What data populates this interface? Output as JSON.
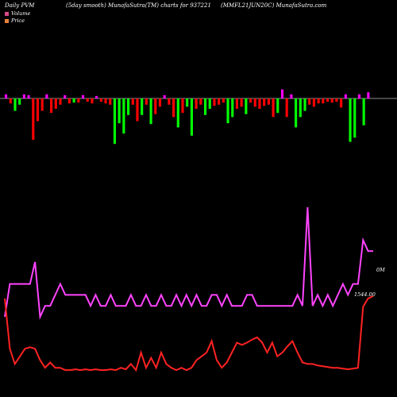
{
  "header": {
    "left": "Daily PVM",
    "middle": "(5day smooth) MunafaSutra(TM) charts for 937221",
    "right": "(MMFL21JUN20C) MunafaSutra.com"
  },
  "legend": [
    {
      "label": "Volume",
      "color": "#d64b8a"
    },
    {
      "label": "Price",
      "color": "#e8823a"
    }
  ],
  "chart_data": {
    "type": "bar",
    "series": [
      {
        "name": "Volume",
        "bars": [
          {
            "v": 0.1,
            "c": "#ff00ff"
          },
          {
            "v": -0.12,
            "c": "#ff0000"
          },
          {
            "v": -0.3,
            "c": "#00ff00"
          },
          {
            "v": -0.15,
            "c": "#00ff00"
          },
          {
            "v": 0.1,
            "c": "#ff00ff"
          },
          {
            "v": 0.08,
            "c": "#ff00ff"
          },
          {
            "v": -1.0,
            "c": "#ff0000"
          },
          {
            "v": -0.55,
            "c": "#ff0000"
          },
          {
            "v": -0.3,
            "c": "#ff0000"
          },
          {
            "v": 0.1,
            "c": "#ff00ff"
          },
          {
            "v": -0.35,
            "c": "#ff0000"
          },
          {
            "v": -0.25,
            "c": "#ff0000"
          },
          {
            "v": -0.15,
            "c": "#ff0000"
          },
          {
            "v": 0.08,
            "c": "#ff00ff"
          },
          {
            "v": -0.12,
            "c": "#ff0000"
          },
          {
            "v": -0.1,
            "c": "#00ff00"
          },
          {
            "v": -0.1,
            "c": "#ff0000"
          },
          {
            "v": 0.08,
            "c": "#ff00ff"
          },
          {
            "v": -0.08,
            "c": "#ff0000"
          },
          {
            "v": -0.12,
            "c": "#ff0000"
          },
          {
            "v": 0.06,
            "c": "#ff00ff"
          },
          {
            "v": -0.08,
            "c": "#ff0000"
          },
          {
            "v": -0.12,
            "c": "#ff0000"
          },
          {
            "v": -0.15,
            "c": "#ff0000"
          },
          {
            "v": -1.1,
            "c": "#00ff00"
          },
          {
            "v": -0.6,
            "c": "#00ff00"
          },
          {
            "v": -0.85,
            "c": "#00ff00"
          },
          {
            "v": -0.4,
            "c": "#00ff00"
          },
          {
            "v": -0.15,
            "c": "#ff0000"
          },
          {
            "v": -0.55,
            "c": "#ff0000"
          },
          {
            "v": -0.4,
            "c": "#00ff00"
          },
          {
            "v": -0.15,
            "c": "#ff0000"
          },
          {
            "v": -0.62,
            "c": "#00ff00"
          },
          {
            "v": -0.38,
            "c": "#ff0000"
          },
          {
            "v": -0.2,
            "c": "#ff0000"
          },
          {
            "v": 0.08,
            "c": "#ff00ff"
          },
          {
            "v": -0.15,
            "c": "#ff0000"
          },
          {
            "v": -0.45,
            "c": "#ff0000"
          },
          {
            "v": -0.7,
            "c": "#00ff00"
          },
          {
            "v": -0.35,
            "c": "#ff0000"
          },
          {
            "v": -0.2,
            "c": "#00ff00"
          },
          {
            "v": -0.9,
            "c": "#00ff00"
          },
          {
            "v": -0.25,
            "c": "#ff0000"
          },
          {
            "v": -0.15,
            "c": "#ff0000"
          },
          {
            "v": -0.4,
            "c": "#00ff00"
          },
          {
            "v": -0.25,
            "c": "#00ff00"
          },
          {
            "v": -0.18,
            "c": "#ff0000"
          },
          {
            "v": -0.15,
            "c": "#ff0000"
          },
          {
            "v": -0.1,
            "c": "#ff0000"
          },
          {
            "v": -0.6,
            "c": "#00ff00"
          },
          {
            "v": -0.45,
            "c": "#00ff00"
          },
          {
            "v": -0.25,
            "c": "#ff0000"
          },
          {
            "v": -0.2,
            "c": "#ff0000"
          },
          {
            "v": -0.38,
            "c": "#00ff00"
          },
          {
            "v": -0.1,
            "c": "#ff0000"
          },
          {
            "v": -0.2,
            "c": "#ff0000"
          },
          {
            "v": -0.25,
            "c": "#ff0000"
          },
          {
            "v": -0.18,
            "c": "#ff0000"
          },
          {
            "v": -0.15,
            "c": "#ff0000"
          },
          {
            "v": -0.45,
            "c": "#ff0000"
          },
          {
            "v": -0.35,
            "c": "#00ff00"
          },
          {
            "v": 0.22,
            "c": "#ff00ff"
          },
          {
            "v": -0.45,
            "c": "#ff0000"
          },
          {
            "v": 0.1,
            "c": "#ff00ff"
          },
          {
            "v": -0.7,
            "c": "#00ff00"
          },
          {
            "v": -0.45,
            "c": "#00ff00"
          },
          {
            "v": -0.3,
            "c": "#00ff00"
          },
          {
            "v": -0.15,
            "c": "#ff0000"
          },
          {
            "v": -0.2,
            "c": "#ff0000"
          },
          {
            "v": -0.12,
            "c": "#ff0000"
          },
          {
            "v": -0.12,
            "c": "#ff0000"
          },
          {
            "v": -0.08,
            "c": "#ff0000"
          },
          {
            "v": -0.1,
            "c": "#ff0000"
          },
          {
            "v": -0.08,
            "c": "#ff0000"
          },
          {
            "v": -0.22,
            "c": "#ff0000"
          },
          {
            "v": 0.1,
            "c": "#ff00ff"
          },
          {
            "v": -1.05,
            "c": "#00ff00"
          },
          {
            "v": -0.95,
            "c": "#00ff00"
          },
          {
            "v": 0.1,
            "c": "#ff00ff"
          },
          {
            "v": -0.65,
            "c": "#00ff00"
          },
          {
            "v": 0.15,
            "c": "#ff00ff"
          }
        ]
      }
    ],
    "price": [
      0.95,
      0.98,
      0.98,
      0.98,
      0.98,
      0.98,
      1.0,
      0.95,
      0.96,
      0.96,
      0.97,
      0.98,
      0.97,
      0.97,
      0.97,
      0.97,
      0.97,
      0.96,
      0.97,
      0.96,
      0.96,
      0.97,
      0.96,
      0.96,
      0.96,
      0.97,
      0.96,
      0.96,
      0.97,
      0.96,
      0.96,
      0.97,
      0.96,
      0.96,
      0.97,
      0.96,
      0.97,
      0.96,
      0.97,
      0.96,
      0.96,
      0.97,
      0.97,
      0.96,
      0.97,
      0.96,
      0.96,
      0.96,
      0.97,
      0.97,
      0.96,
      0.96,
      0.96,
      0.96,
      0.96,
      0.96,
      0.96,
      0.96,
      0.97,
      0.96,
      1.05,
      0.96,
      0.97,
      0.96,
      0.97,
      0.96,
      0.97,
      0.98,
      0.97,
      0.98,
      0.98,
      1.02,
      1.01,
      1.01
    ],
    "price2": [
      0.96,
      0.3,
      0.1,
      0.2,
      0.3,
      0.32,
      0.3,
      0.15,
      0.05,
      0.12,
      0.05,
      0.05,
      0.02,
      0.02,
      0.03,
      0.02,
      0.03,
      0.02,
      0.03,
      0.02,
      0.02,
      0.03,
      0.02,
      0.05,
      0.03,
      0.1,
      0.02,
      0.25,
      0.05,
      0.18,
      0.05,
      0.25,
      0.1,
      0.05,
      0.02,
      0.05,
      0.02,
      0.05,
      0.15,
      0.2,
      0.25,
      0.4,
      0.15,
      0.05,
      0.12,
      0.25,
      0.38,
      0.35,
      0.38,
      0.42,
      0.45,
      0.38,
      0.25,
      0.38,
      0.2,
      0.25,
      0.33,
      0.4,
      0.25,
      0.12,
      0.1,
      0.1,
      0.08,
      0.07,
      0.06,
      0.05,
      0.05,
      0.04,
      0.03,
      0.04,
      0.05,
      0.85,
      0.96,
      0.99
    ],
    "annotations": [
      "0M",
      "1544.00"
    ]
  }
}
